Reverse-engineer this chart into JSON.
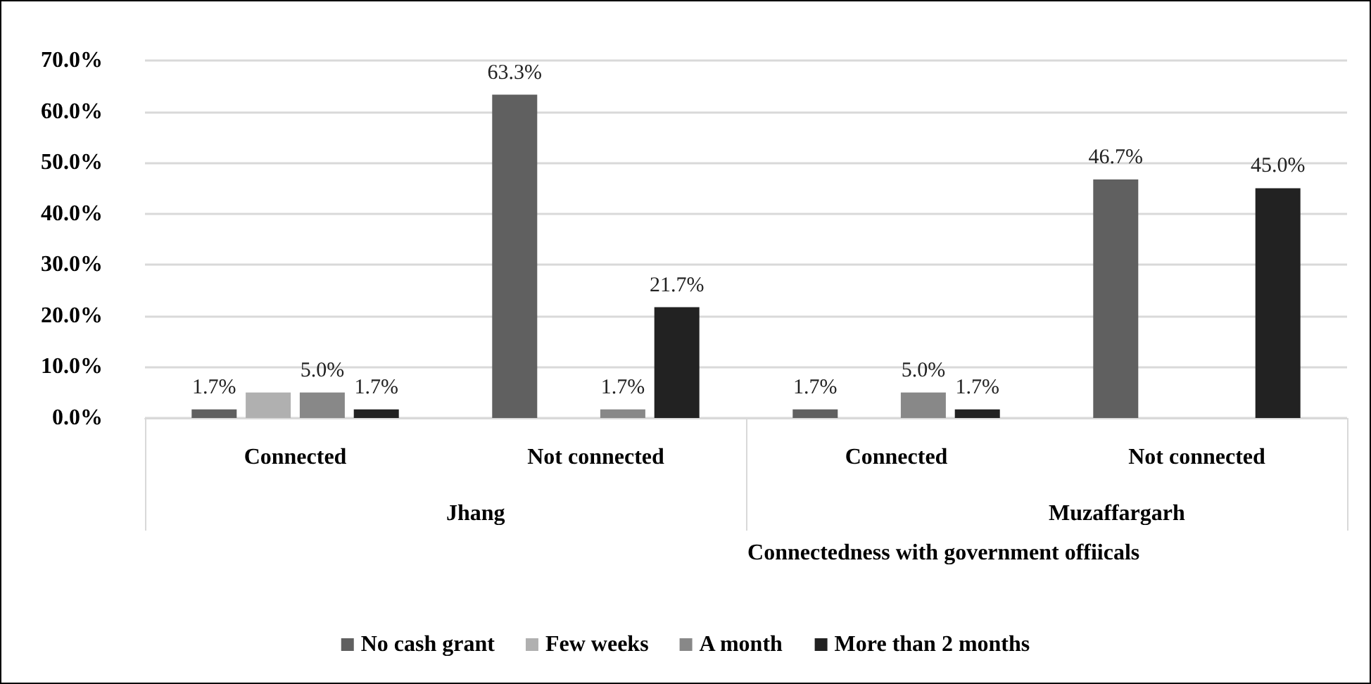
{
  "chart_data": {
    "type": "bar",
    "xlabel": "Connectedness with government offiicals",
    "categories": [
      "Connected",
      "Not connected",
      "Connected",
      "Not connected"
    ],
    "annotations": [
      "Jhang",
      "Muzaffargarh"
    ],
    "series": [
      {
        "name": "No cash grant",
        "color": "#606060",
        "values": [
          1.7,
          63.3,
          1.7,
          46.7
        ],
        "value_labels": [
          "1.7%",
          "63.3%",
          "1.7%",
          "46.7%"
        ]
      },
      {
        "name": "Few weeks",
        "color": "#b0b0b0",
        "values": [
          5.0,
          null,
          null,
          null
        ],
        "value_labels": [
          null,
          null,
          null,
          null
        ]
      },
      {
        "name": "A month",
        "color": "#888888",
        "values": [
          5.0,
          1.7,
          5.0,
          null
        ],
        "value_labels": [
          "5.0%",
          "1.7%",
          "5.0%",
          null
        ]
      },
      {
        "name": "More than 2 months",
        "color": "#222222",
        "values": [
          1.7,
          21.7,
          1.7,
          45.0
        ],
        "value_labels": [
          "1.7%",
          "21.7%",
          "1.7%",
          "45.0%"
        ]
      }
    ],
    "ylim": [
      0,
      70
    ],
    "yticks": [
      {
        "value": 0,
        "label": "0.0%"
      },
      {
        "value": 10,
        "label": "10.0%"
      },
      {
        "value": 20,
        "label": "20.0%"
      },
      {
        "value": 30,
        "label": "30.0%"
      },
      {
        "value": 40,
        "label": "40.0%"
      },
      {
        "value": 50,
        "label": "50.0%"
      },
      {
        "value": 60,
        "label": "60.0%"
      },
      {
        "value": 70,
        "label": "70.0%"
      }
    ],
    "grid": "y",
    "legend": "bottom"
  }
}
